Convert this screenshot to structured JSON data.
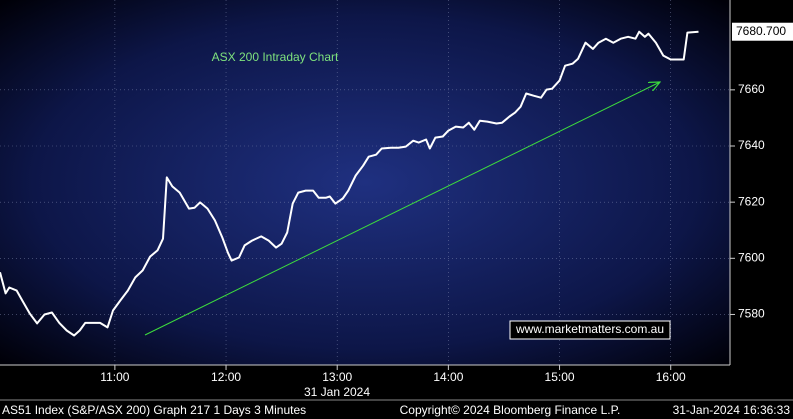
{
  "chart_data": {
    "type": "line",
    "title": "ASX 200 Intraday Chart",
    "annotation": "www.marketmatters.com.au",
    "date_label": "31 Jan 2024",
    "footer_left": "AS51 Index (S&P/ASX 200) Graph 217 1 Days 3 Minutes",
    "footer_center": "Copyright© 2024 Bloomberg Finance L.P.",
    "footer_right": "31-Jan-2024 16:36:33",
    "last_value_label": "7680.700",
    "line_color": "#ffffff",
    "title_color": "#7ee27e",
    "grid": true,
    "xlim": [
      598,
      992
    ],
    "ylim": [
      7562,
      7692
    ],
    "xticks": [
      {
        "value": 660,
        "label": "11:00"
      },
      {
        "value": 720,
        "label": "12:00"
      },
      {
        "value": 780,
        "label": "13:00"
      },
      {
        "value": 840,
        "label": "14:00"
      },
      {
        "value": 900,
        "label": "15:00"
      },
      {
        "value": 960,
        "label": "16:00"
      }
    ],
    "yticks": [
      7580,
      7600,
      7620,
      7640,
      7660
    ],
    "x": [
      598,
      601,
      603,
      607,
      610,
      614,
      618,
      622,
      626,
      630,
      634,
      638,
      641,
      644,
      648,
      652,
      656,
      659,
      663,
      667,
      671,
      675,
      679,
      683,
      686,
      688,
      691,
      695,
      700,
      703,
      706,
      710,
      714,
      718,
      721,
      723,
      727,
      730,
      734,
      739,
      743,
      747,
      750,
      753,
      756,
      759,
      763,
      767,
      770,
      774,
      776,
      779,
      783,
      786,
      790,
      794,
      797,
      801,
      804,
      809,
      813,
      817,
      821,
      824,
      828,
      830,
      833,
      837,
      840,
      844,
      848,
      851,
      854,
      857,
      861,
      866,
      869,
      873,
      876,
      879,
      882,
      886,
      890,
      893,
      896,
      900,
      903,
      907,
      910,
      914,
      918,
      921,
      925,
      929,
      933,
      937,
      941,
      943,
      946,
      948,
      952,
      956,
      960,
      964,
      967,
      969,
      975
    ],
    "values": [
      7595,
      7587.5,
      7589.6,
      7588.5,
      7585,
      7580.4,
      7576.8,
      7580,
      7580.7,
      7577,
      7574.3,
      7572.5,
      7574.3,
      7577,
      7577,
      7577,
      7575.4,
      7581.4,
      7585,
      7588.5,
      7593.2,
      7595.7,
      7600.6,
      7602.8,
      7607,
      7628.8,
      7625.6,
      7623.4,
      7617.7,
      7618,
      7619.9,
      7617.7,
      7613.5,
      7607.4,
      7602,
      7599.2,
      7600.3,
      7604.6,
      7606.3,
      7607.8,
      7606.3,
      7603.8,
      7605.2,
      7609.2,
      7619.5,
      7623.4,
      7624.1,
      7624.1,
      7621.6,
      7621.6,
      7622,
      7619.5,
      7621.3,
      7624.1,
      7629.5,
      7633,
      7636.2,
      7636.9,
      7639.1,
      7639.4,
      7639.4,
      7639.8,
      7641.9,
      7641.2,
      7642.3,
      7639.1,
      7643,
      7643.4,
      7645.5,
      7646.9,
      7646.6,
      7648.3,
      7645.8,
      7649,
      7648.7,
      7648,
      7648.3,
      7650.5,
      7651.9,
      7654,
      7658.7,
      7657.9,
      7657.2,
      7660.1,
      7660.4,
      7663.3,
      7668.6,
      7669.3,
      7671.1,
      7676.8,
      7674.6,
      7676.8,
      7678.2,
      7676.8,
      7678.2,
      7678.9,
      7678.2,
      7680.7,
      7678.9,
      7680,
      7676.8,
      7672.2,
      7670.8,
      7670.8,
      7670.8,
      7680.4,
      7680.7
    ]
  }
}
